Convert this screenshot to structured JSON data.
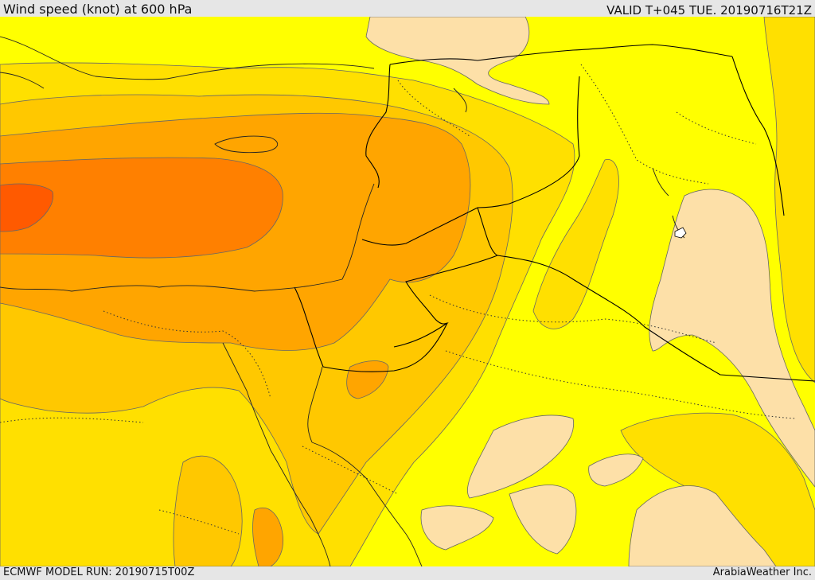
{
  "header": {
    "title": "Wind speed (knot) at 600 hPa",
    "valid_time": "VALID T+045 TUE. 20190716T21Z"
  },
  "footer": {
    "model_run": "ECMWF MODEL RUN: 20190715T00Z",
    "credit": "ArabiaWeather Inc."
  },
  "palette": {
    "band_lightest": "#fde0a8",
    "band_yellow": "#ffff00",
    "band_gold": "#ffe000",
    "band_light_orange": "#ffc800",
    "band_orange": "#ffa500",
    "band_dark_orange": "#ff8000",
    "band_red_orange": "#ff5a00",
    "borders": "#000000",
    "contours": "#555555"
  }
}
